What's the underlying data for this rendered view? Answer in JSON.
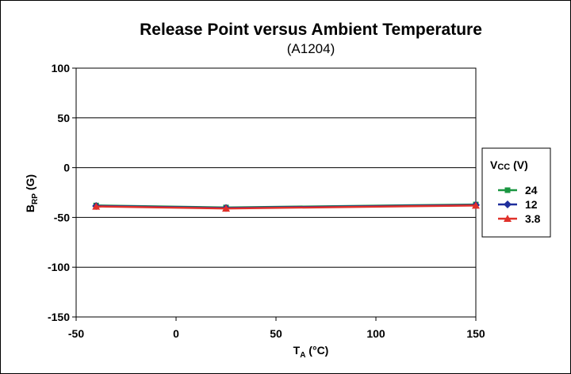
{
  "chart_data": {
    "type": "line",
    "title": "Release Point versus Ambient Temperature",
    "subtitle": "(A1204)",
    "xlabel": {
      "main": "T",
      "sub": "A",
      "rest": " (°C)"
    },
    "ylabel": {
      "main": "B",
      "sub": "RP",
      "rest": " (G)"
    },
    "xlim": [
      -50,
      150
    ],
    "ylim": [
      -150,
      100
    ],
    "xticks": [
      -50,
      0,
      50,
      100,
      150
    ],
    "yticks": [
      100,
      50,
      0,
      -50,
      -100,
      -150
    ],
    "grid": "horizontal",
    "legend": {
      "title_main": "V",
      "title_sub": "CC",
      "title_rest": " (V)",
      "placement": "right"
    },
    "x": [
      -40,
      25,
      150
    ],
    "series": [
      {
        "name": "24",
        "color": "#1a9641",
        "marker": "square",
        "values": [
          -38,
          -40,
          -37
        ]
      },
      {
        "name": "12",
        "color": "#1f2f9c",
        "marker": "diamond",
        "values": [
          -38.5,
          -40.5,
          -37.5
        ]
      },
      {
        "name": "3.8",
        "color": "#e0312a",
        "marker": "triangle",
        "values": [
          -39,
          -41,
          -38
        ]
      }
    ]
  }
}
